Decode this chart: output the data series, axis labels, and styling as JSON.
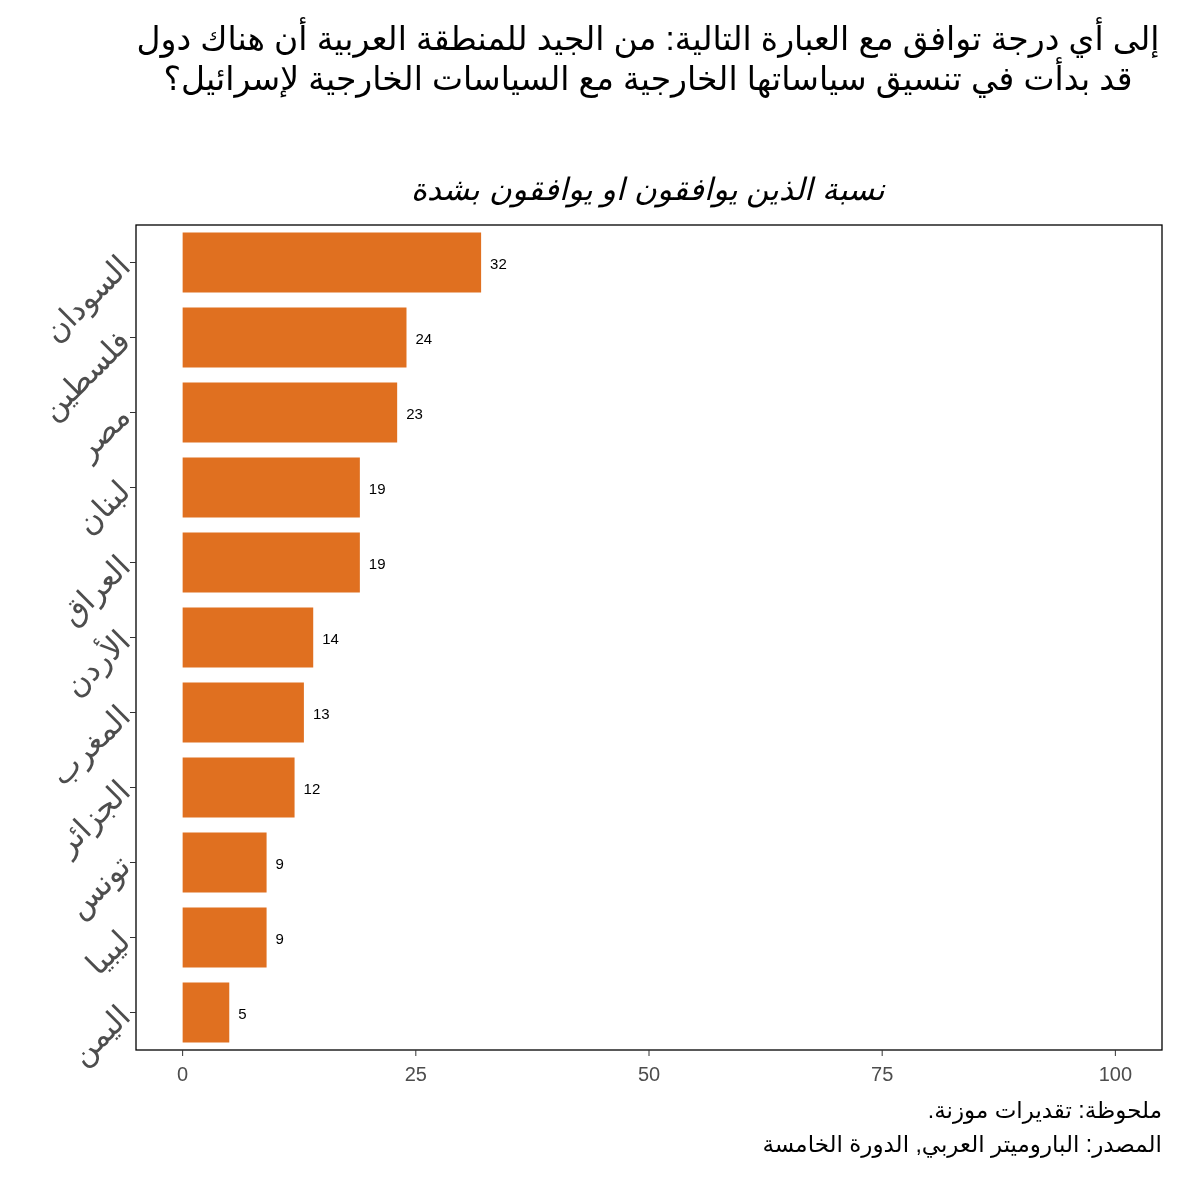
{
  "chart_data": {
    "type": "bar",
    "orientation": "horizontal",
    "title": "إلى أي درجة توافق مع العبارة التالية: من الجيد للمنطقة العربية أن هناك دول قد بدأت في تنسيق سياساتها الخارجية مع السياسات الخارجية لإسرائيل؟",
    "subtitle": "نسبة الذين يوافقون او يوافقون بشدة",
    "categories": [
      "السودان",
      "فلسطين",
      "مصر",
      "لبنان",
      "العراق",
      "الأردن",
      "المغرب",
      "الجزائر",
      "تونس",
      "ليبيا",
      "اليمن"
    ],
    "values": [
      32,
      24,
      23,
      19,
      19,
      14,
      13,
      12,
      9,
      9,
      5
    ],
    "color": "#e07020",
    "xlim": [
      -5,
      105
    ],
    "xticks": [
      0,
      25,
      50,
      75,
      100
    ],
    "data_labels": true,
    "annotations": [
      "ملحوظة: تقديرات موزنة.",
      "المصدر: الباروميتر العربي, الدورة الخامسة"
    ]
  }
}
